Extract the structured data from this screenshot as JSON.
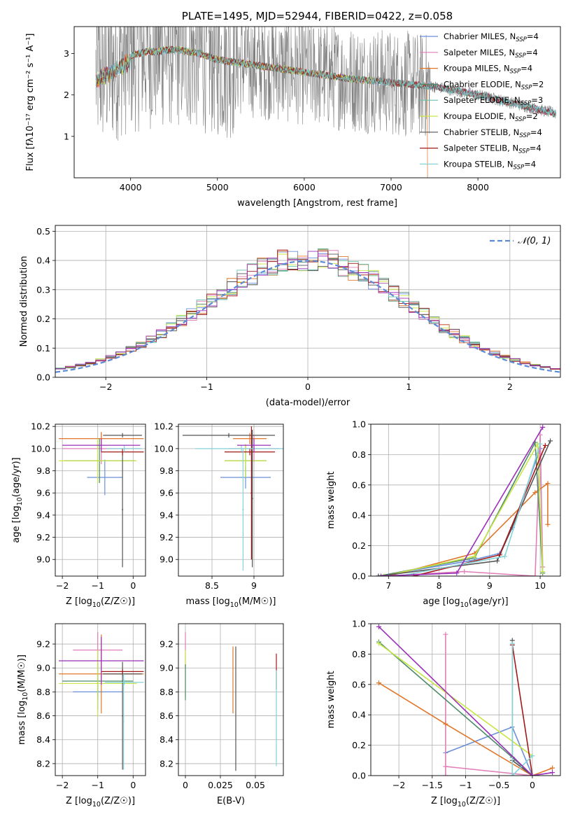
{
  "colors": {
    "s0": "#6a8fd9",
    "s1": "#e07fb8",
    "s2": "#e0772a",
    "s3": "#4f8a6a",
    "s4": "#67c2a8",
    "s5": "#c8e646",
    "s6": "#555555",
    "s7": "#a01a1a",
    "s8": "#86d2d6",
    "purple": "#9a30b8",
    "data": "#7f7f7f",
    "normal": "#5b8bd6",
    "grid": "#b0b0b0"
  },
  "chart_data": [
    {
      "id": "spectrum",
      "type": "line",
      "title": "PLATE=1495, MJD=52944, FIBERID=0422, z=0.058",
      "xlabel": "wavelength [Angstrom, rest frame]",
      "ylabel": "Flux [fλ10⁻¹⁷ erg cm⁻² s⁻¹ A⁻¹]",
      "xlim": [
        3350,
        8950
      ],
      "ylim": [
        0,
        3.65
      ],
      "xticks": [
        4000,
        5000,
        6000,
        7000,
        8000
      ],
      "yticks": [
        1,
        2,
        3
      ],
      "grid": false,
      "legend_position": "top-right",
      "continuum_points": {
        "x": [
          3600,
          3700,
          3800,
          3900,
          4000,
          4100,
          4200,
          4300,
          4500,
          4800,
          5000,
          5500,
          6000,
          6500,
          7000,
          7500,
          8000,
          8500,
          8900
        ],
        "y": [
          2.5,
          2.6,
          2.7,
          2.85,
          2.95,
          3.0,
          3.05,
          3.05,
          3.1,
          3.0,
          2.85,
          2.7,
          2.55,
          2.4,
          2.3,
          2.2,
          2.0,
          1.75,
          1.55
        ]
      },
      "series": [
        {
          "name": "Chabrier MILES, N",
          "sub": "SSP",
          "suffix": "=4",
          "color_key": "s0"
        },
        {
          "name": "Salpeter MILES, N",
          "sub": "SSP",
          "suffix": "=4",
          "color_key": "s1"
        },
        {
          "name": "Kroupa MILES, N",
          "sub": "SSP",
          "suffix": "=4",
          "color_key": "s2"
        },
        {
          "name": "Chabrier ELODIE, N",
          "sub": "SSP",
          "suffix": "=2",
          "color_key": "s3"
        },
        {
          "name": "Salpeter ELODIE, N",
          "sub": "SSP",
          "suffix": "=3",
          "color_key": "s4"
        },
        {
          "name": "Kroupa ELODIE, N",
          "sub": "SSP",
          "suffix": "=2",
          "color_key": "s5"
        },
        {
          "name": "Chabrier STELIB, N",
          "sub": "SSP",
          "suffix": "=4",
          "color_key": "s6"
        },
        {
          "name": "Salpeter STELIB, N",
          "sub": "SSP",
          "suffix": "=4",
          "color_key": "s7"
        },
        {
          "name": "Kroupa STELIB, N",
          "sub": "SSP",
          "suffix": "=4",
          "color_key": "s8"
        }
      ]
    },
    {
      "id": "residuals",
      "type": "histogram",
      "xlabel": "(data-model)/error",
      "ylabel": "Normed distribution",
      "xlim": [
        -2.5,
        2.5
      ],
      "ylim": [
        0,
        0.52
      ],
      "xticks": [
        -2,
        -1,
        0,
        1,
        2
      ],
      "yticks": [
        0.0,
        0.1,
        0.2,
        0.3,
        0.4,
        0.5
      ],
      "grid": true,
      "legend_position": "top-right",
      "legend": "𝒩(0, 1)",
      "bin_width": 0.1,
      "normal_curve": {
        "mean": 0,
        "sigma": 1
      }
    },
    {
      "id": "age-vs-Z",
      "type": "errorbar",
      "xlabel": "Z [log10(Z/Z☉)]",
      "ylabel": "age [log10(age/yr)]",
      "xlim": [
        -2.2,
        0.35
      ],
      "ylim": [
        8.85,
        10.22
      ],
      "xticks": [
        -2,
        -1,
        0
      ],
      "yticks": [
        9.0,
        9.2,
        9.4,
        9.6,
        9.8,
        10.0,
        10.2
      ],
      "grid": true,
      "points": [
        {
          "color_key": "s0",
          "x": -0.8,
          "xerr": 0.5,
          "y": 9.74,
          "yerr": 0.16
        },
        {
          "color_key": "s1",
          "x": -0.9,
          "xerr": 1.1,
          "y": 10.0,
          "yerr": 0.14
        },
        {
          "color_key": "s2",
          "x": -0.9,
          "xerr": 1.2,
          "y": 10.09,
          "yerr": 0.06
        },
        {
          "color_key": "s3",
          "x": -0.95,
          "xerr": 1.0,
          "y": 9.89,
          "yerr": 0.2
        },
        {
          "color_key": "s5",
          "x": -1.0,
          "xerr": 1.1,
          "y": 9.89,
          "yerr": 0.2
        },
        {
          "color_key": "s6",
          "x": -0.3,
          "xerr": 0.55,
          "y": 10.12,
          "yerr": 0.02
        },
        {
          "color_key": "s6",
          "x": -0.3,
          "xerr": 0.02,
          "y": 9.45,
          "yerr": 0.52
        },
        {
          "color_key": "s7",
          "x": -0.3,
          "xerr": 0.6,
          "y": 9.97,
          "yerr": 0.03
        },
        {
          "color_key": "s8",
          "x": -0.25,
          "xerr": 0.5,
          "y": 10.0,
          "yerr": 0.03
        },
        {
          "color_key": "purple",
          "x": -0.9,
          "xerr": 1.1,
          "y": 10.03,
          "yerr": 0.06
        }
      ]
    },
    {
      "id": "age-vs-mass",
      "type": "errorbar",
      "xlabel": "mass [log10(M/M☉)]",
      "xlim": [
        8.1,
        9.35
      ],
      "ylim": [
        8.85,
        10.22
      ],
      "xticks": [
        8.5,
        9.0
      ],
      "yticks": [
        9.0,
        9.2,
        9.4,
        9.6,
        9.8,
        10.0,
        10.2
      ],
      "grid": true,
      "points": [
        {
          "color_key": "s0",
          "x": 8.9,
          "xerr": 0.3,
          "y": 9.74,
          "yerr": 0.1
        },
        {
          "color_key": "s1",
          "x": 9.0,
          "xerr": 0.3,
          "y": 10.0,
          "yerr": 0.12
        },
        {
          "color_key": "s2",
          "x": 8.95,
          "xerr": 0.2,
          "y": 10.09,
          "yerr": 0.05
        },
        {
          "color_key": "s3",
          "x": 8.9,
          "xerr": 0.25,
          "y": 9.89,
          "yerr": 0.15
        },
        {
          "color_key": "s5",
          "x": 8.9,
          "xerr": 0.25,
          "y": 9.89,
          "yerr": 0.15
        },
        {
          "color_key": "s6",
          "x": 8.7,
          "xerr": 0.55,
          "y": 10.12,
          "yerr": 0.02
        },
        {
          "color_key": "s6",
          "x": 8.98,
          "xerr": 0.01,
          "y": 9.55,
          "yerr": 0.62
        },
        {
          "color_key": "s7",
          "x": 8.95,
          "xerr": 0.3,
          "y": 9.97,
          "yerr": 0.03
        },
        {
          "color_key": "s7",
          "x": 8.97,
          "xerr": 0.01,
          "y": 9.6,
          "yerr": 0.6
        },
        {
          "color_key": "s8",
          "x": 8.85,
          "xerr": 0.55,
          "y": 10.0,
          "yerr": 0.03
        },
        {
          "color_key": "s8",
          "x": 8.87,
          "xerr": 0.01,
          "y": 9.45,
          "yerr": 0.55
        },
        {
          "color_key": "purple",
          "x": 9.0,
          "xerr": 0.2,
          "y": 10.03,
          "yerr": 0.06
        }
      ]
    },
    {
      "id": "weight-vs-age",
      "type": "line",
      "xlabel": "age  [log10(age/yr)]",
      "ylabel": "mass weight",
      "xlim": [
        6.65,
        10.4
      ],
      "ylim": [
        0,
        1
      ],
      "xticks": [
        7,
        8,
        9,
        10
      ],
      "yticks": [
        0.0,
        0.2,
        0.4,
        0.6,
        0.8,
        1.0
      ],
      "grid": true,
      "series": [
        {
          "color_key": "s0",
          "x": [
            6.8,
            8.6,
            9.2,
            9.45,
            10.0
          ],
          "y": [
            0.0,
            0.1,
            0.15,
            0.32,
            0.84
          ]
        },
        {
          "color_key": "s1",
          "x": [
            6.9,
            8.5,
            9.9,
            10.0,
            10.05
          ],
          "y": [
            0.0,
            0.03,
            0.0,
            0.93,
            0.06
          ]
        },
        {
          "color_key": "s2",
          "x": [
            7.0,
            8.7,
            9.9,
            10.15,
            10.15
          ],
          "y": [
            0.0,
            0.15,
            0.55,
            0.61,
            0.34
          ]
        },
        {
          "color_key": "s3",
          "x": [
            6.8,
            8.7,
            9.9,
            10.05
          ],
          "y": [
            0.0,
            0.12,
            0.88,
            0.02
          ]
        },
        {
          "color_key": "s5",
          "x": [
            6.9,
            8.7,
            9.95,
            10.05
          ],
          "y": [
            0.0,
            0.13,
            0.87,
            0.03
          ]
        },
        {
          "color_key": "s6",
          "x": [
            6.8,
            9.15,
            10.2
          ],
          "y": [
            0.0,
            0.1,
            0.89
          ]
        },
        {
          "color_key": "s7",
          "x": [
            7.5,
            9.2,
            10.1
          ],
          "y": [
            0.0,
            0.14,
            0.86
          ]
        },
        {
          "color_key": "s8",
          "x": [
            7.2,
            9.3,
            10.0
          ],
          "y": [
            0.0,
            0.13,
            0.87
          ]
        },
        {
          "color_key": "purple",
          "x": [
            6.85,
            8.35,
            10.05
          ],
          "y": [
            0.0,
            0.02,
            0.98
          ]
        }
      ]
    },
    {
      "id": "mass-vs-Z",
      "type": "errorbar",
      "xlabel": "Z [log10(Z/Z☉)]",
      "ylabel": "mass [log10(M/M☉)]",
      "xlim": [
        -2.2,
        0.35
      ],
      "ylim": [
        8.1,
        9.37
      ],
      "xticks": [
        -2,
        -1,
        0
      ],
      "yticks": [
        8.2,
        8.4,
        8.6,
        8.8,
        9.0,
        9.2
      ],
      "grid": true,
      "points": [
        {
          "color_key": "s0",
          "x": -1.0,
          "xerr": 0.7,
          "y": 8.8,
          "yerr": 0.15
        },
        {
          "color_key": "s1",
          "x": -1.0,
          "xerr": 0.7,
          "y": 9.15,
          "yerr": 0.15
        },
        {
          "color_key": "s2",
          "x": -0.9,
          "xerr": 1.2,
          "y": 8.95,
          "yerr": 0.33
        },
        {
          "color_key": "s3",
          "x": -1.0,
          "xerr": 1.0,
          "y": 8.89,
          "yerr": 0.15
        },
        {
          "color_key": "s5",
          "x": -1.0,
          "xerr": 1.1,
          "y": 8.87,
          "yerr": 0.28
        },
        {
          "color_key": "s6",
          "x": -0.3,
          "xerr": 0.55,
          "y": 8.95,
          "yerr": 0.02
        },
        {
          "color_key": "s6",
          "x": -0.3,
          "xerr": 0.02,
          "y": 8.6,
          "yerr": 0.45
        },
        {
          "color_key": "s7",
          "x": -0.3,
          "xerr": 0.6,
          "y": 8.97,
          "yerr": 0.02
        },
        {
          "color_key": "s8",
          "x": -0.25,
          "xerr": 0.55,
          "y": 8.88,
          "yerr": 0.02
        },
        {
          "color_key": "s8",
          "x": -0.27,
          "xerr": 0.02,
          "y": 8.55,
          "yerr": 0.4
        },
        {
          "color_key": "purple",
          "x": -0.9,
          "xerr": 1.2,
          "y": 9.06,
          "yerr": 0.2
        }
      ]
    },
    {
      "id": "mass-vs-EBV",
      "type": "errorbar",
      "xlabel": "E(B-V)",
      "xlim": [
        -0.005,
        0.07
      ],
      "ylim": [
        8.1,
        9.37
      ],
      "xticks": [
        0.0,
        0.025,
        0.05
      ],
      "yticks": [
        8.2,
        8.4,
        8.6,
        8.8,
        9.0,
        9.2
      ],
      "grid": true,
      "points": [
        {
          "color_key": "s1",
          "x": 0.0,
          "xerr": 0,
          "y": 9.15,
          "yerr": 0.15
        },
        {
          "color_key": "s5",
          "x": 0.0,
          "xerr": 0,
          "y": 8.95,
          "yerr": 0.2
        },
        {
          "color_key": "s3",
          "x": 0.0,
          "xerr": 0,
          "y": 8.88,
          "yerr": 0.15
        },
        {
          "color_key": "s2",
          "x": 0.034,
          "xerr": 0,
          "y": 8.9,
          "yerr": 0.28
        },
        {
          "color_key": "s6",
          "x": 0.036,
          "xerr": 0,
          "y": 8.66,
          "yerr": 0.52
        },
        {
          "color_key": "s7",
          "x": 0.065,
          "xerr": 0,
          "y": 8.97,
          "yerr": 0.15
        },
        {
          "color_key": "s8",
          "x": 0.065,
          "xerr": 0,
          "y": 8.58,
          "yerr": 0.4
        }
      ]
    },
    {
      "id": "weight-vs-Z",
      "type": "line",
      "xlabel": "Z [log10(Z/Z☉)]",
      "ylabel": "mass weight",
      "xlim": [
        -2.42,
        0.42
      ],
      "ylim": [
        0,
        1
      ],
      "xticks": [
        -2.0,
        -1.5,
        -1.0,
        -0.5,
        0.0
      ],
      "yticks": [
        0.0,
        0.2,
        0.4,
        0.6,
        0.8,
        1.0
      ],
      "grid": true,
      "series": [
        {
          "color_key": "s0",
          "x": [
            -1.3,
            -0.3,
            0.0
          ],
          "y": [
            0.15,
            0.32,
            0.0
          ]
        },
        {
          "color_key": "s1",
          "x": [
            -1.3,
            -1.3,
            -1.3,
            0.0
          ],
          "y": [
            0.93,
            0.0,
            0.06,
            0.0
          ]
        },
        {
          "color_key": "s2",
          "x": [
            -2.3,
            -1.3,
            0.0,
            0.3
          ],
          "y": [
            0.61,
            0.34,
            0.0,
            0.05
          ]
        },
        {
          "color_key": "s3",
          "x": [
            -2.3,
            -0.3,
            0.0
          ],
          "y": [
            0.88,
            0.12,
            0.0
          ]
        },
        {
          "color_key": "s5",
          "x": [
            -2.3,
            0.0
          ],
          "y": [
            0.87,
            0.13
          ]
        },
        {
          "color_key": "s6",
          "x": [
            -0.3,
            -0.3,
            0.0
          ],
          "y": [
            0.89,
            0.1,
            0.0
          ]
        },
        {
          "color_key": "s7",
          "x": [
            -0.3,
            0.0
          ],
          "y": [
            0.86,
            0.0
          ]
        },
        {
          "color_key": "s8",
          "x": [
            -0.3,
            -0.3,
            0.0
          ],
          "y": [
            0.87,
            0.0,
            0.13
          ]
        },
        {
          "color_key": "purple",
          "x": [
            -2.3,
            0.0,
            0.3
          ],
          "y": [
            0.98,
            0.0,
            0.02
          ]
        }
      ]
    }
  ]
}
